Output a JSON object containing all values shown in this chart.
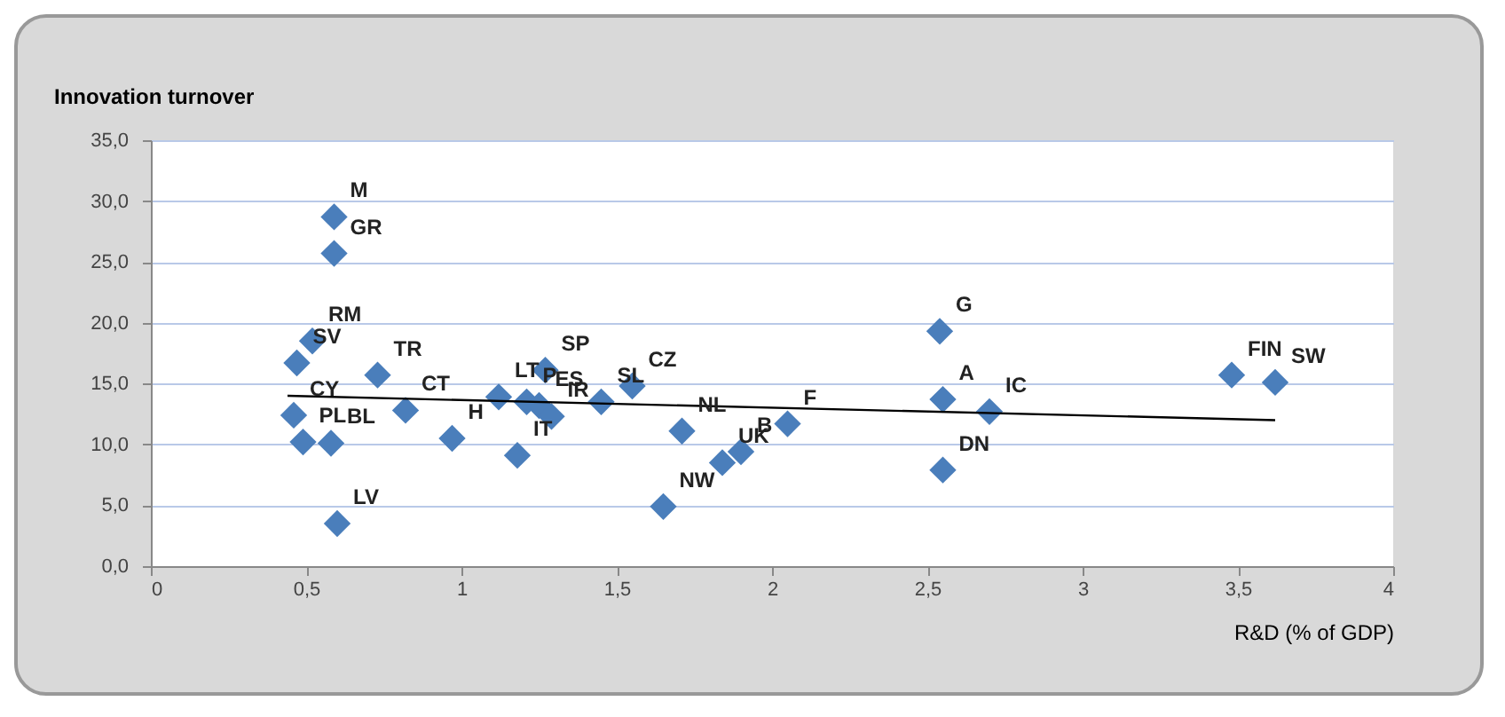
{
  "chart_data": {
    "type": "scatter",
    "ylabel": "Innovation turnover",
    "xlabel": "R&D (% of GDP)",
    "xlim": [
      0,
      4
    ],
    "ylim": [
      0,
      35
    ],
    "xticks": [
      0,
      {
        "value": 0.5,
        "label": "0,5"
      },
      1,
      {
        "value": 1.5,
        "label": "1,5"
      },
      2,
      {
        "value": 2.5,
        "label": "2,5"
      },
      3,
      {
        "value": 3.5,
        "label": "3,5"
      },
      4
    ],
    "yticks": [
      {
        "value": 0,
        "label": "0,0"
      },
      {
        "value": 5,
        "label": "5,0"
      },
      {
        "value": 10,
        "label": "10,0"
      },
      {
        "value": 15,
        "label": "15,0"
      },
      {
        "value": 20,
        "label": "20,0"
      },
      {
        "value": 25,
        "label": "25,0"
      },
      {
        "value": 30,
        "label": "30,0"
      },
      {
        "value": 35,
        "label": "35,0"
      }
    ],
    "grid": "y",
    "series": [
      {
        "marker": "diamond",
        "color": "#4a7ebb",
        "x": [
          0.59,
          0.59,
          0.52,
          0.47,
          0.73,
          0.82,
          1.12,
          1.21,
          1.25,
          1.29,
          1.27,
          1.55,
          1.45,
          0.97,
          1.18,
          1.71,
          1.65,
          0.46,
          0.49,
          0.58,
          0.6,
          1.84,
          1.9,
          2.05,
          2.54,
          2.55,
          2.7,
          2.55,
          3.48,
          3.62
        ],
        "values": [
          28.7,
          25.7,
          18.5,
          16.7,
          15.7,
          12.8,
          13.9,
          13.5,
          13.2,
          12.3,
          16.1,
          14.8,
          13.5,
          10.5,
          9.1,
          11.1,
          4.9,
          12.4,
          10.2,
          10.1,
          3.5,
          8.5,
          9.4,
          11.7,
          19.3,
          13.7,
          12.7,
          7.9,
          15.7,
          15.1
        ]
      },
      {
        "type": "line",
        "color": "#000000",
        "x": [
          0.44,
          3.62
        ],
        "values": [
          14.0,
          12.0
        ]
      }
    ],
    "annotations": [
      {
        "text": "M",
        "x": 0.59,
        "y": 28.7
      },
      {
        "text": "GR",
        "x": 0.59,
        "y": 25.7
      },
      {
        "text": "RM",
        "x": 0.52,
        "y": 18.5
      },
      {
        "text": "SV",
        "x": 0.47,
        "y": 16.7
      },
      {
        "text": "TR",
        "x": 0.73,
        "y": 15.7
      },
      {
        "text": "CT",
        "x": 0.82,
        "y": 12.8
      },
      {
        "text": "LT",
        "x": 1.12,
        "y": 13.9
      },
      {
        "text": "P",
        "x": 1.21,
        "y": 13.5
      },
      {
        "text": "ES",
        "x": 1.25,
        "y": 13.2
      },
      {
        "text": "IR",
        "x": 1.29,
        "y": 12.3
      },
      {
        "text": "SP",
        "x": 1.27,
        "y": 16.1
      },
      {
        "text": "CZ",
        "x": 1.55,
        "y": 14.8
      },
      {
        "text": "SL",
        "x": 1.45,
        "y": 13.5
      },
      {
        "text": "H",
        "x": 0.97,
        "y": 10.5
      },
      {
        "text": "IT",
        "x": 1.18,
        "y": 9.1
      },
      {
        "text": "NL",
        "x": 1.71,
        "y": 11.1
      },
      {
        "text": "NW",
        "x": 1.65,
        "y": 4.9
      },
      {
        "text": "CY",
        "x": 0.46,
        "y": 12.4
      },
      {
        "text": "PL",
        "x": 0.49,
        "y": 10.2
      },
      {
        "text": "BL",
        "x": 0.58,
        "y": 10.1
      },
      {
        "text": "LV",
        "x": 0.6,
        "y": 3.5
      },
      {
        "text": "UK",
        "x": 1.84,
        "y": 8.5
      },
      {
        "text": "B",
        "x": 1.9,
        "y": 9.4
      },
      {
        "text": "F",
        "x": 2.05,
        "y": 11.7
      },
      {
        "text": "G",
        "x": 2.54,
        "y": 19.3
      },
      {
        "text": "A",
        "x": 2.55,
        "y": 13.7
      },
      {
        "text": "IC",
        "x": 2.7,
        "y": 12.7
      },
      {
        "text": "DN",
        "x": 2.55,
        "y": 7.9
      },
      {
        "text": "FIN",
        "x": 3.48,
        "y": 15.7
      },
      {
        "text": "SW",
        "x": 3.62,
        "y": 15.1
      }
    ]
  }
}
